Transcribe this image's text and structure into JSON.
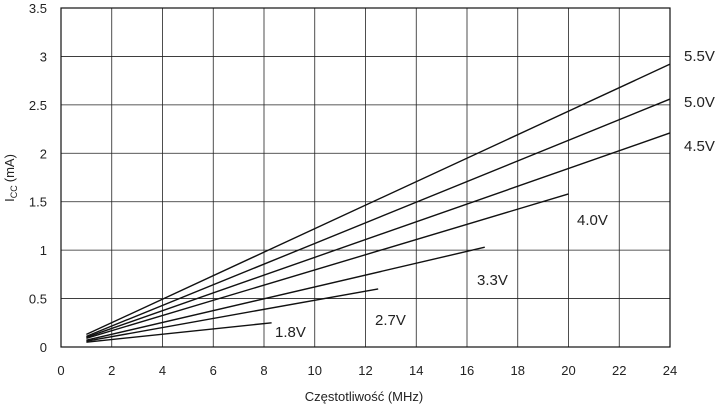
{
  "chart_data": {
    "type": "line",
    "title": "",
    "xlabel": "Częstotliwość (MHz)",
    "ylabel_main": "I",
    "ylabel_sub": "CC",
    "ylabel_unit": "(mA)",
    "xlim": [
      0,
      24
    ],
    "ylim": [
      0,
      3.5
    ],
    "grid": true,
    "x_ticks": [
      0,
      2,
      4,
      6,
      8,
      10,
      12,
      14,
      16,
      18,
      20,
      22,
      24
    ],
    "y_ticks": [
      0,
      0.5,
      1,
      1.5,
      2,
      2.5,
      3,
      3.5
    ],
    "series": [
      {
        "name": "5.5V",
        "x": [
          1,
          24
        ],
        "y": [
          0.13,
          2.92
        ]
      },
      {
        "name": "5.0V",
        "x": [
          1,
          24
        ],
        "y": [
          0.11,
          2.56
        ]
      },
      {
        "name": "4.5V",
        "x": [
          1,
          24
        ],
        "y": [
          0.1,
          2.21
        ]
      },
      {
        "name": "4.0V",
        "x": [
          1,
          20
        ],
        "y": [
          0.09,
          1.58
        ]
      },
      {
        "name": "3.3V",
        "x": [
          1,
          16.7
        ],
        "y": [
          0.07,
          1.03
        ]
      },
      {
        "name": "2.7V",
        "x": [
          1,
          12.5
        ],
        "y": [
          0.06,
          0.6
        ]
      },
      {
        "name": "1.8V",
        "x": [
          1,
          8.3
        ],
        "y": [
          0.05,
          0.25
        ]
      }
    ]
  }
}
